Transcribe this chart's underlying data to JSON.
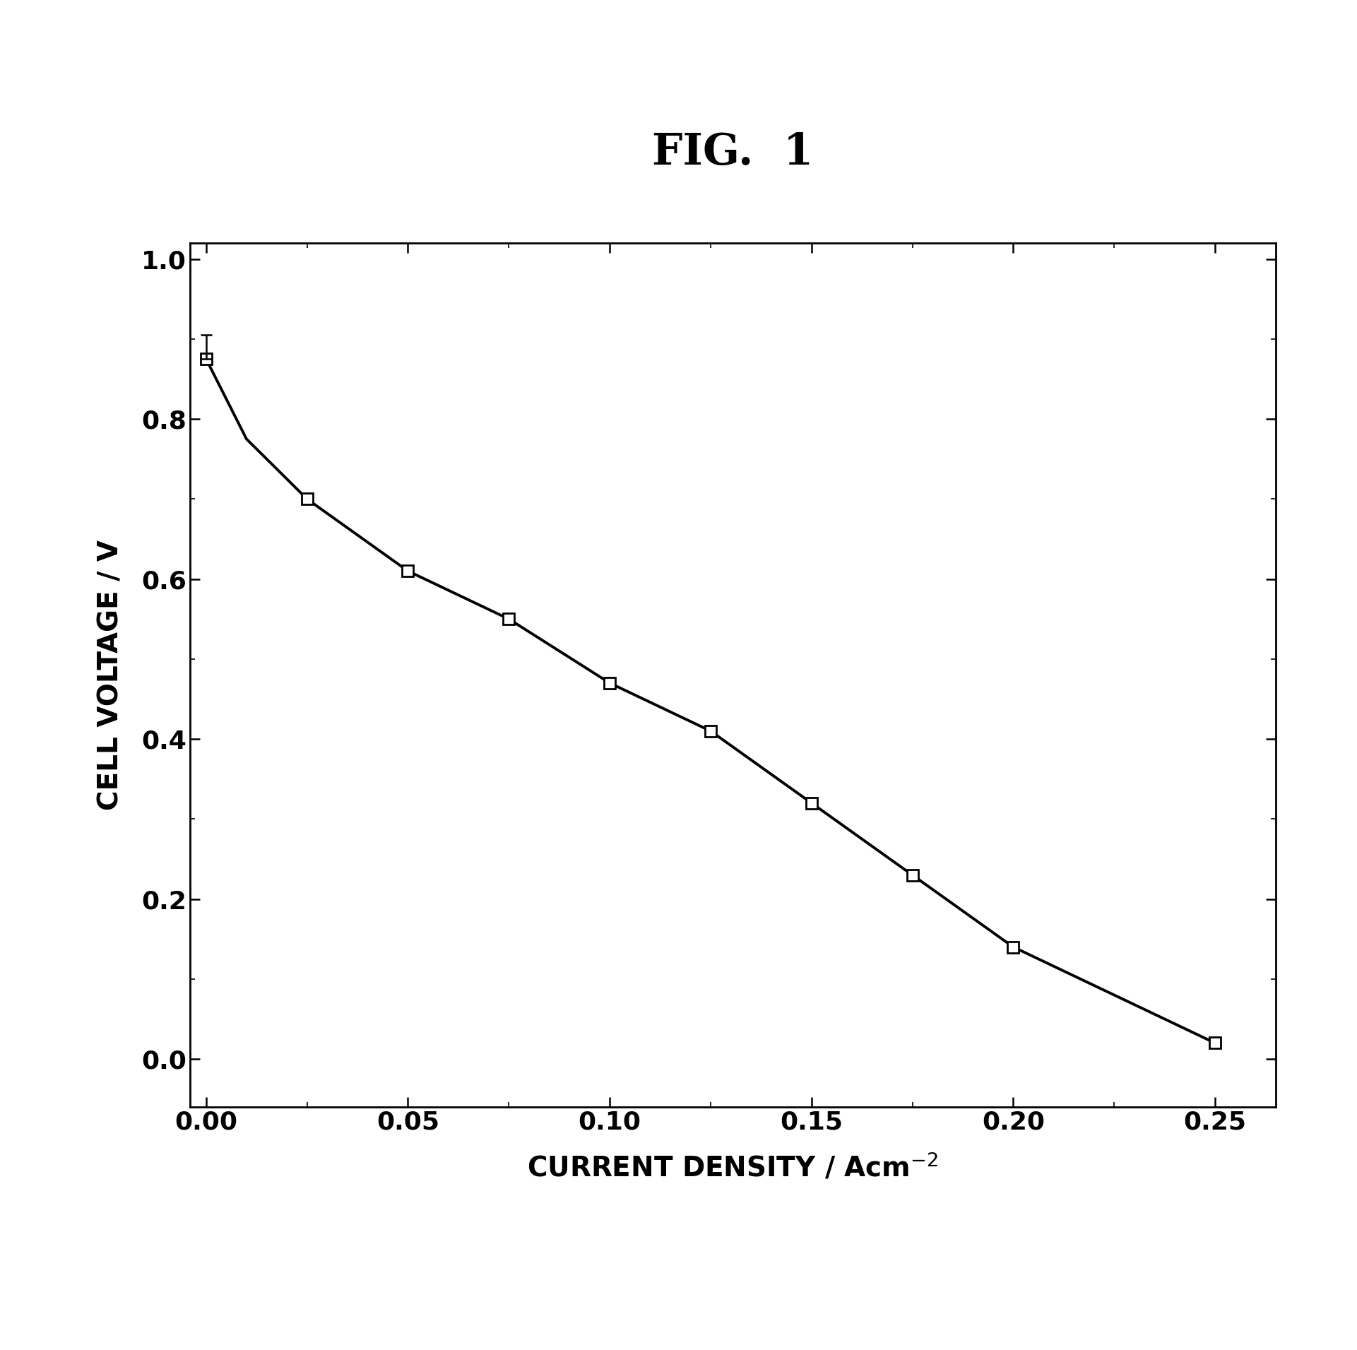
{
  "x": [
    0.0,
    0.01,
    0.025,
    0.05,
    0.075,
    0.1,
    0.125,
    0.15,
    0.175,
    0.2,
    0.25
  ],
  "y": [
    0.875,
    0.775,
    0.7,
    0.61,
    0.55,
    0.47,
    0.41,
    0.32,
    0.23,
    0.14,
    0.02
  ],
  "marker_x": [
    0.0,
    0.025,
    0.05,
    0.075,
    0.1,
    0.125,
    0.15,
    0.175,
    0.2,
    0.25
  ],
  "marker_y": [
    0.875,
    0.7,
    0.61,
    0.55,
    0.47,
    0.41,
    0.32,
    0.23,
    0.14,
    0.02
  ],
  "title": "FIG.  1",
  "xlabel": "CURRENT DENSITY / Acm$^{-2}$",
  "ylabel": "CELL VOLTAGE / V",
  "xlim": [
    -0.004,
    0.265
  ],
  "ylim": [
    -0.06,
    1.02
  ],
  "xticks": [
    0.0,
    0.05,
    0.1,
    0.15,
    0.2,
    0.25
  ],
  "yticks": [
    0.0,
    0.2,
    0.4,
    0.6,
    0.8,
    1.0
  ],
  "xtick_labels": [
    "0.00",
    "0.05",
    "0.10",
    "0.15",
    "0.20",
    "0.25"
  ],
  "ytick_labels": [
    "0.0",
    "0.2",
    "0.4",
    "0.6",
    "0.8",
    "1.0"
  ],
  "line_color": "#000000",
  "marker_color": "#000000",
  "bg_color": "#ffffff",
  "title_fontsize": 44,
  "label_fontsize": 28,
  "tick_fontsize": 26,
  "linewidth": 2.8,
  "markersize": 11
}
